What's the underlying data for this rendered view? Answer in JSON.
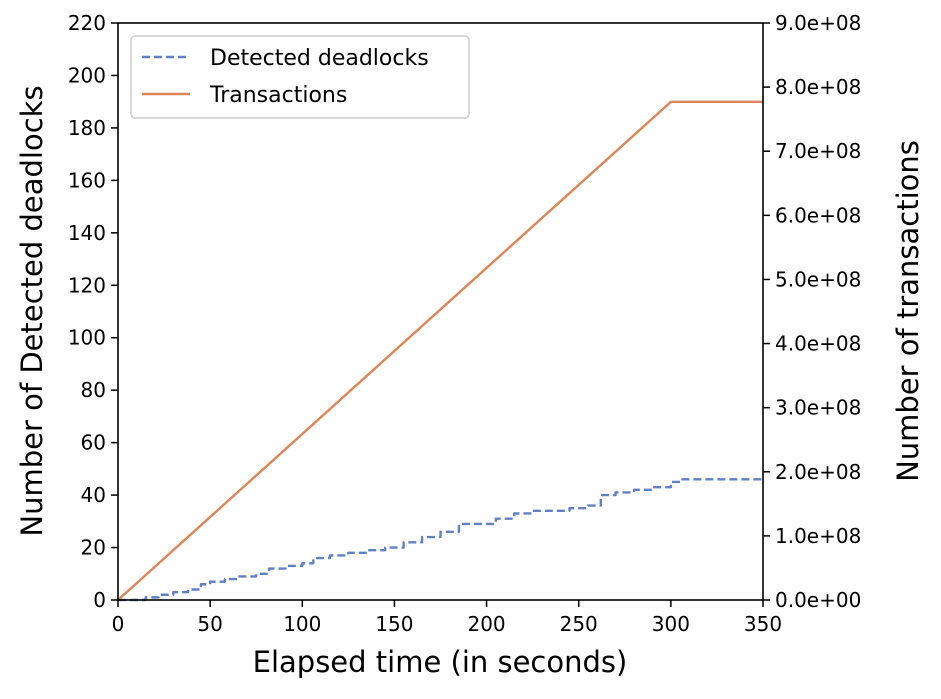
{
  "chart_data": {
    "type": "line",
    "xlabel": "Elapsed time (in seconds)",
    "ylabel": "Number of Detected deadlocks",
    "y2label": "Number of transactions",
    "xlim": [
      0,
      350
    ],
    "ylim": [
      0,
      220
    ],
    "y2lim": [
      0,
      900000000
    ],
    "x_ticks": [
      "0",
      "50",
      "100",
      "150",
      "200",
      "250",
      "300",
      "350"
    ],
    "y_ticks": [
      "0",
      "20",
      "40",
      "60",
      "80",
      "100",
      "120",
      "140",
      "160",
      "180",
      "200",
      "220"
    ],
    "y2_ticks": [
      "0.0e+00",
      "1.0e+08",
      "2.0e+08",
      "3.0e+08",
      "4.0e+08",
      "5.0e+08",
      "6.0e+08",
      "7.0e+08",
      "8.0e+08",
      "9.0e+08"
    ],
    "grid": false,
    "legend_position": "top-left",
    "series": [
      {
        "name": "Detected deadlocks",
        "axis": "left",
        "style": "dashed-step",
        "color": "#5f80c5",
        "x": [
          0,
          15,
          22,
          30,
          38,
          45,
          50,
          58,
          65,
          75,
          82,
          92,
          100,
          106,
          115,
          125,
          135,
          145,
          155,
          165,
          175,
          185,
          195,
          205,
          215,
          225,
          235,
          245,
          255,
          262,
          270,
          280,
          290,
          300,
          305,
          350
        ],
        "y": [
          0,
          1,
          2,
          3,
          4,
          6,
          7,
          8,
          9,
          10,
          12,
          13,
          14,
          16,
          17,
          18,
          19,
          20,
          22,
          24,
          26,
          29,
          29,
          31,
          33,
          34,
          34,
          35,
          36,
          40,
          41,
          42,
          43,
          45,
          46,
          46
        ]
      },
      {
        "name": "Transactions",
        "axis": "right",
        "style": "solid",
        "color": "#dc8657",
        "x": [
          0,
          300,
          350
        ],
        "y": [
          0,
          777000000,
          777000000
        ]
      }
    ]
  }
}
